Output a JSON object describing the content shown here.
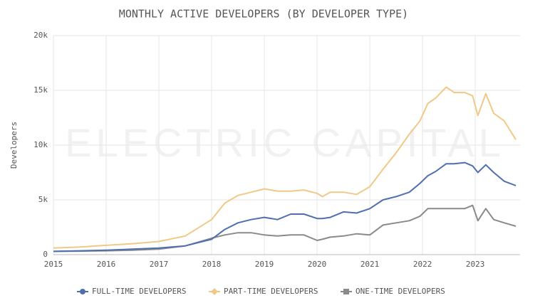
{
  "chart_data": {
    "type": "line",
    "title": "MONTHLY ACTIVE DEVELOPERS (BY DEVELOPER TYPE)",
    "ylabel": "Developers",
    "watermark": "ELECTRIC CAPITAL",
    "x": [
      2015,
      2015.5,
      2016,
      2016.5,
      2017,
      2017.5,
      2018,
      2018.25,
      2018.5,
      2018.75,
      2019,
      2019.25,
      2019.5,
      2019.75,
      2020,
      2020.1,
      2020.25,
      2020.5,
      2020.75,
      2021,
      2021.25,
      2021.5,
      2021.75,
      2021.95,
      2022.1,
      2022.25,
      2022.45,
      2022.6,
      2022.8,
      2022.95,
      2023.05,
      2023.2,
      2023.35,
      2023.55,
      2023.77
    ],
    "series": [
      {
        "name": "FULL-TIME DEVELOPERS",
        "color": "#4f6fad",
        "marker": "circle",
        "values": [
          300,
          350,
          400,
          500,
          600,
          800,
          1400,
          2300,
          2900,
          3200,
          3400,
          3200,
          3700,
          3700,
          3300,
          3300,
          3400,
          3900,
          3800,
          4200,
          5000,
          5300,
          5700,
          6500,
          7200,
          7600,
          8300,
          8300,
          8400,
          8100,
          7500,
          8200,
          7500,
          6700,
          6300
        ]
      },
      {
        "name": "PART-TIME DEVELOPERS",
        "color": "#f0c987",
        "marker": "diamond",
        "values": [
          600,
          700,
          850,
          1000,
          1200,
          1700,
          3200,
          4700,
          5400,
          5700,
          6000,
          5800,
          5800,
          5900,
          5600,
          5300,
          5700,
          5700,
          5500,
          6200,
          7800,
          9300,
          11000,
          12200,
          13800,
          14300,
          15300,
          14800,
          14800,
          14500,
          12700,
          14700,
          12900,
          12200,
          10500
        ]
      },
      {
        "name": "ONE-TIME DEVELOPERS",
        "color": "#8a8a8a",
        "marker": "square",
        "values": [
          300,
          320,
          350,
          400,
          500,
          800,
          1500,
          1800,
          2000,
          2000,
          1800,
          1700,
          1800,
          1800,
          1300,
          1400,
          1600,
          1700,
          1900,
          1800,
          2700,
          2900,
          3100,
          3500,
          4200,
          4200,
          4200,
          4200,
          4200,
          4500,
          3100,
          4200,
          3200,
          2900,
          2600
        ]
      }
    ],
    "xlim": [
      2015,
      2023.85
    ],
    "xticks": [
      2015,
      2016,
      2017,
      2018,
      2019,
      2020,
      2021,
      2022,
      2023
    ],
    "ylim": [
      0,
      20000
    ],
    "yticks": [
      0,
      {
        "value": 5000,
        "label": "5k"
      },
      {
        "value": 10000,
        "label": "10k"
      },
      {
        "value": 15000,
        "label": "15k"
      },
      {
        "value": 20000,
        "label": "20k"
      }
    ],
    "grid": true,
    "legend": "bottom"
  }
}
